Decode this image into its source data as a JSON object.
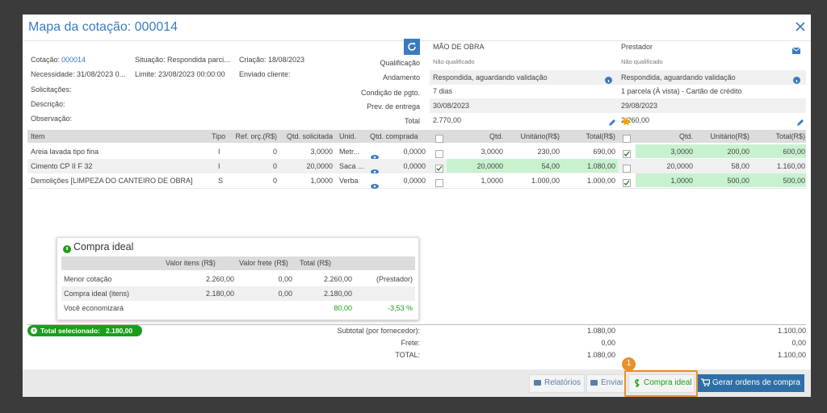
{
  "dialog": {
    "title": "Mapa da cotação: 000014"
  },
  "info": {
    "quote_label": "Cotação:",
    "quote_number": "000014",
    "status": "Situação: Respondida parci...",
    "created": "Criação: 18/08/2023",
    "need": "Necessidade: 31/08/2023 0...",
    "limit": "Limite: 23/08/2023 00:00:00",
    "sent": "Enviado cliente:",
    "requests": "Solicitações:",
    "description": "Descrição:",
    "notes": "Observação:"
  },
  "fields": [
    "Qualificação",
    "Andamento",
    "Condição de pgto.",
    "Prev. de entrega",
    "Total"
  ],
  "suppliers": [
    {
      "name": "MÃO DE OBRA",
      "qualification": "Não qualificado",
      "progress": "Respondida, aguardando validação",
      "payment": "7 dias",
      "delivery": "30/08/2023",
      "total": "2.770,00"
    },
    {
      "name": "Prestador",
      "qualification": "Não qualificado",
      "progress": "Respondida, aguardando validação",
      "payment": "1 parcela (À vista) - Cartão de crédito",
      "delivery": "29/08/2023",
      "total": "2.260,00"
    }
  ],
  "table": {
    "columns": [
      "Item",
      "Tipo",
      "Ref. orç.(R$)",
      "Qtd. solicitada",
      "Unid.",
      "Qtd. comprada"
    ],
    "supplier_columns": [
      "Qtd.",
      "Unitário(R$)",
      "Total(R$)"
    ],
    "rows": [
      {
        "item": "Areia lavada tipo fina",
        "type": "I",
        "ref": "0",
        "requested": "3,0000",
        "unit": "Metr...",
        "purchased": "0,0000",
        "quotes": [
          [
            "3,0000",
            "230,00",
            "690,00"
          ],
          [
            "3,0000",
            "200,00",
            "600,00"
          ]
        ],
        "chosen": 1
      },
      {
        "item": "Cimento CP II F 32",
        "type": "I",
        "ref": "0",
        "requested": "20,0000",
        "unit": "Saca ...",
        "purchased": "0,0000",
        "quotes": [
          [
            "20,0000",
            "54,00",
            "1.080,00"
          ],
          [
            "20,0000",
            "58,00",
            "1.160,00"
          ]
        ],
        "chosen": 0
      },
      {
        "item": "Demolições [LIMPEZA DO CANTEIRO DE OBRA]",
        "type": "S",
        "ref": "0",
        "requested": "1,0000",
        "unit": "Verba",
        "purchased": "0,0000",
        "quotes": [
          [
            "1,0000",
            "1.000,00",
            "1.000,00"
          ],
          [
            "1,0000",
            "500,00",
            "500,00"
          ]
        ],
        "chosen": 1
      }
    ]
  },
  "ideal": {
    "title": "Compra ideal",
    "columns": [
      "Valor itens (R$)",
      "Valor frete (R$)",
      "Total (R$)"
    ],
    "rows": [
      {
        "label": "Menor cotação",
        "items": "2.260,00",
        "freight": "0,00",
        "total": "2.260,00",
        "note": "(Prestador)"
      },
      {
        "label": "Compra ideal (itens)",
        "items": "2.180,00",
        "freight": "0,00",
        "total": "2.180,00"
      },
      {
        "label": "Você economizará",
        "total": "80,00",
        "note": "-3,53 %"
      }
    ]
  },
  "summary": {
    "selected_label": "Total selecionado:",
    "selected_value": "2.180,00",
    "labels": [
      "Subtotal (por fornecedor):",
      "Frete:",
      "TOTAL:"
    ],
    "supplier_totals": [
      [
        "1.080,00",
        "0,00",
        "1.080,00"
      ],
      [
        "1.100,00",
        "0,00",
        "1.100,00"
      ]
    ]
  },
  "buttons": [
    "Relatórios",
    "Enviar",
    "Compra ideal",
    "Gerar ordens de compra"
  ],
  "callout": "1"
}
